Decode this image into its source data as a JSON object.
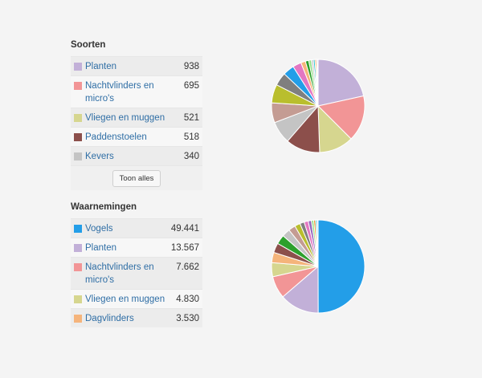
{
  "species": {
    "title": "Soorten",
    "rows": [
      {
        "label": "Planten",
        "count": "938",
        "color": "#c2b0d8"
      },
      {
        "label": "Nachtvlinders en micro's",
        "count": "695",
        "color": "#f29596"
      },
      {
        "label": "Vliegen en muggen",
        "count": "521",
        "color": "#d6d68f"
      },
      {
        "label": "Paddenstoelen",
        "count": "518",
        "color": "#8c4f4b"
      },
      {
        "label": "Kevers",
        "count": "340",
        "color": "#c4c4c4"
      }
    ],
    "show_all_label": "Toon alles"
  },
  "observations": {
    "title": "Waarnemingen",
    "rows": [
      {
        "label": "Vogels",
        "count": "49.441",
        "color": "#239ee8"
      },
      {
        "label": "Planten",
        "count": "13.567",
        "color": "#c2b0d8"
      },
      {
        "label": "Nachtvlinders en micro's",
        "count": "7.662",
        "color": "#f29596"
      },
      {
        "label": "Vliegen en muggen",
        "count": "4.830",
        "color": "#d6d68f"
      },
      {
        "label": "Dagvlinders",
        "count": "3.530",
        "color": "#f5b47b"
      }
    ]
  },
  "chart_data": [
    {
      "type": "pie",
      "slices": [
        {
          "value": 938,
          "color": "#c2b0d8"
        },
        {
          "value": 695,
          "color": "#f29596"
        },
        {
          "value": 521,
          "color": "#d6d68f"
        },
        {
          "value": 518,
          "color": "#8c4f4b"
        },
        {
          "value": 340,
          "color": "#c4c4c4"
        },
        {
          "value": 300,
          "color": "#c49c93"
        },
        {
          "value": 280,
          "color": "#b9be2d"
        },
        {
          "value": 200,
          "color": "#7f7f7f"
        },
        {
          "value": 170,
          "color": "#239ee8"
        },
        {
          "value": 130,
          "color": "#e377c2"
        },
        {
          "value": 70,
          "color": "#f5b47b"
        },
        {
          "value": 50,
          "color": "#2ca02c"
        },
        {
          "value": 40,
          "color": "#98df8a"
        },
        {
          "value": 30,
          "color": "#c7c7c7"
        },
        {
          "value": 25,
          "color": "#17becf"
        },
        {
          "value": 20,
          "color": "#ff7f0e"
        },
        {
          "value": 15,
          "color": "#9467bd"
        },
        {
          "value": 12,
          "color": "#aec7e8"
        }
      ]
    },
    {
      "type": "pie",
      "slices": [
        {
          "value": 49441,
          "color": "#239ee8"
        },
        {
          "value": 13567,
          "color": "#c2b0d8"
        },
        {
          "value": 7662,
          "color": "#f29596"
        },
        {
          "value": 4830,
          "color": "#d6d68f"
        },
        {
          "value": 3530,
          "color": "#f5b47b"
        },
        {
          "value": 3300,
          "color": "#8c4f4b"
        },
        {
          "value": 3200,
          "color": "#2ca02c"
        },
        {
          "value": 2800,
          "color": "#c4c4c4"
        },
        {
          "value": 2400,
          "color": "#c49c93"
        },
        {
          "value": 1900,
          "color": "#b9be2d"
        },
        {
          "value": 1500,
          "color": "#7f7f7f"
        },
        {
          "value": 1400,
          "color": "#e377c2"
        },
        {
          "value": 1100,
          "color": "#9467bd"
        },
        {
          "value": 800,
          "color": "#98df8a"
        },
        {
          "value": 600,
          "color": "#ff7f0e"
        },
        {
          "value": 500,
          "color": "#17becf"
        },
        {
          "value": 400,
          "color": "#aec7e8"
        }
      ]
    }
  ]
}
